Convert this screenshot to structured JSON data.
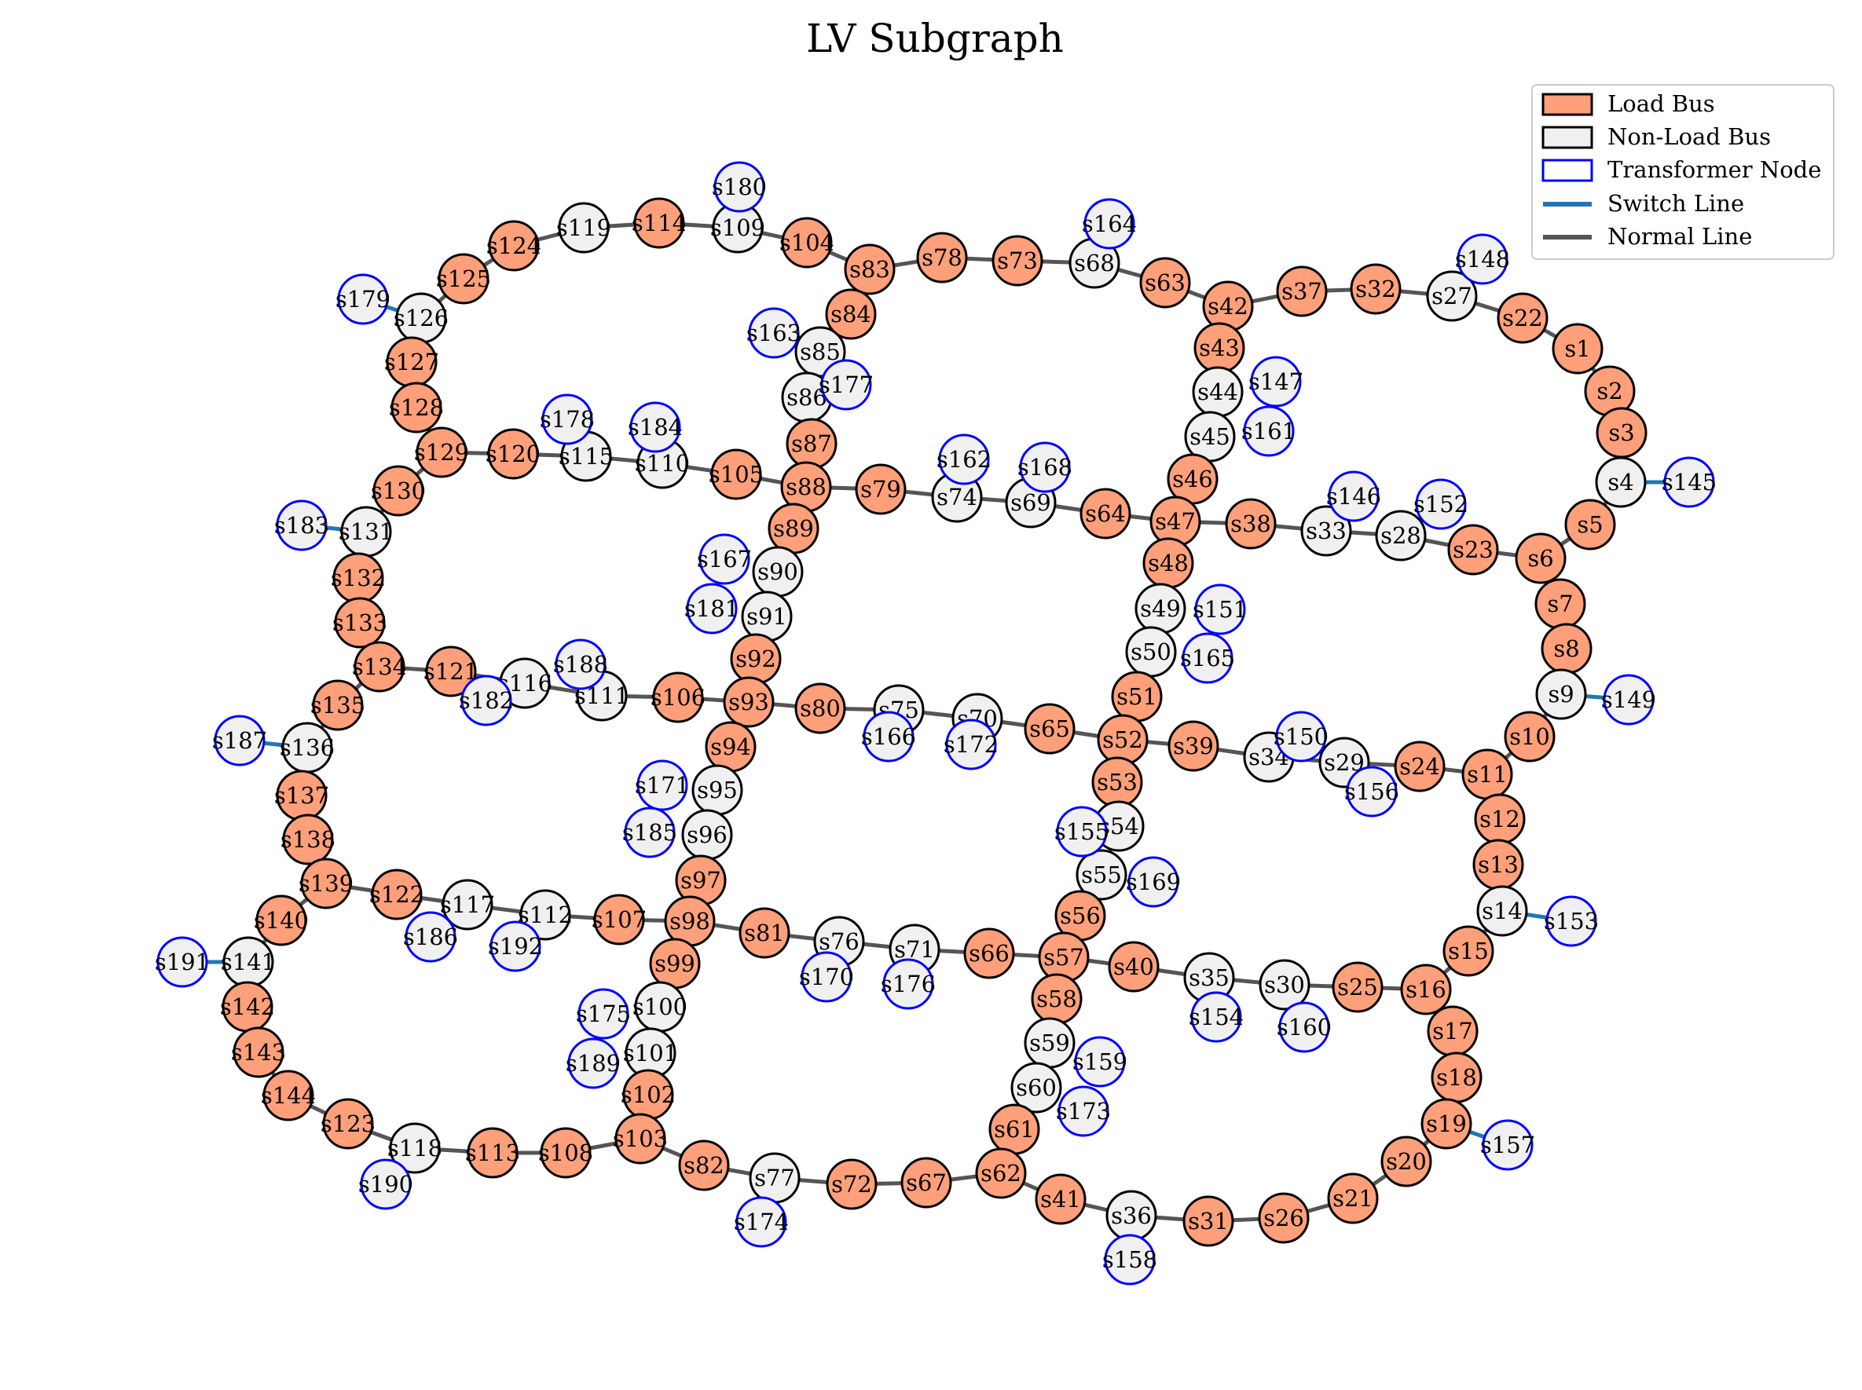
{
  "title": "LV Subgraph",
  "colors": {
    "load_fill": "#FFA07A",
    "nonload_fill": "#F0F0F0",
    "node_edge": "#000000",
    "transformer_edge": "#0000FF",
    "switch_line": "#1F77B4",
    "normal_line": "#555555"
  },
  "legend": {
    "load_bus": "Load Bus",
    "non_load_bus": "Non-Load Bus",
    "transformer_node": "Transformer Node",
    "switch_line": "Switch Line",
    "normal_line": "Normal Line"
  },
  "nodes": [
    [
      "s1",
      "L"
    ],
    [
      "s2",
      "L"
    ],
    [
      "s3",
      "L"
    ],
    [
      "s4",
      "N"
    ],
    [
      "s5",
      "L"
    ],
    [
      "s6",
      "L"
    ],
    [
      "s7",
      "L"
    ],
    [
      "s8",
      "L"
    ],
    [
      "s9",
      "N"
    ],
    [
      "s10",
      "L"
    ],
    [
      "s11",
      "L"
    ],
    [
      "s12",
      "L"
    ],
    [
      "s13",
      "L"
    ],
    [
      "s14",
      "N"
    ],
    [
      "s15",
      "L"
    ],
    [
      "s16",
      "L"
    ],
    [
      "s17",
      "L"
    ],
    [
      "s18",
      "L"
    ],
    [
      "s19",
      "L"
    ],
    [
      "s20",
      "L"
    ],
    [
      "s21",
      "L"
    ],
    [
      "s22",
      "L"
    ],
    [
      "s23",
      "L"
    ],
    [
      "s24",
      "L"
    ],
    [
      "s25",
      "L"
    ],
    [
      "s26",
      "L"
    ],
    [
      "s27",
      "N"
    ],
    [
      "s28",
      "N"
    ],
    [
      "s29",
      "N"
    ],
    [
      "s30",
      "N"
    ],
    [
      "s31",
      "L"
    ],
    [
      "s32",
      "L"
    ],
    [
      "s33",
      "N"
    ],
    [
      "s34",
      "N"
    ],
    [
      "s35",
      "N"
    ],
    [
      "s36",
      "N"
    ],
    [
      "s37",
      "L"
    ],
    [
      "s38",
      "L"
    ],
    [
      "s39",
      "L"
    ],
    [
      "s40",
      "L"
    ],
    [
      "s41",
      "L"
    ],
    [
      "s42",
      "L"
    ],
    [
      "s43",
      "L"
    ],
    [
      "s44",
      "N"
    ],
    [
      "s45",
      "N"
    ],
    [
      "s46",
      "L"
    ],
    [
      "s47",
      "L"
    ],
    [
      "s48",
      "L"
    ],
    [
      "s49",
      "N"
    ],
    [
      "s50",
      "N"
    ],
    [
      "s51",
      "L"
    ],
    [
      "s52",
      "L"
    ],
    [
      "s53",
      "L"
    ],
    [
      "s54",
      "N"
    ],
    [
      "s55",
      "N"
    ],
    [
      "s56",
      "L"
    ],
    [
      "s57",
      "L"
    ],
    [
      "s58",
      "L"
    ],
    [
      "s59",
      "N"
    ],
    [
      "s60",
      "N"
    ],
    [
      "s61",
      "L"
    ],
    [
      "s62",
      "L"
    ],
    [
      "s63",
      "L"
    ],
    [
      "s64",
      "L"
    ],
    [
      "s65",
      "L"
    ],
    [
      "s66",
      "L"
    ],
    [
      "s67",
      "L"
    ],
    [
      "s68",
      "N"
    ],
    [
      "s69",
      "N"
    ],
    [
      "s70",
      "N"
    ],
    [
      "s71",
      "N"
    ],
    [
      "s72",
      "L"
    ],
    [
      "s73",
      "L"
    ],
    [
      "s74",
      "N"
    ],
    [
      "s75",
      "N"
    ],
    [
      "s76",
      "N"
    ],
    [
      "s77",
      "N"
    ],
    [
      "s78",
      "L"
    ],
    [
      "s79",
      "L"
    ],
    [
      "s80",
      "L"
    ],
    [
      "s81",
      "L"
    ],
    [
      "s82",
      "L"
    ],
    [
      "s83",
      "L"
    ],
    [
      "s84",
      "L"
    ],
    [
      "s85",
      "N"
    ],
    [
      "s86",
      "N"
    ],
    [
      "s87",
      "L"
    ],
    [
      "s88",
      "L"
    ],
    [
      "s89",
      "L"
    ],
    [
      "s90",
      "N"
    ],
    [
      "s91",
      "N"
    ],
    [
      "s92",
      "L"
    ],
    [
      "s93",
      "L"
    ],
    [
      "s94",
      "L"
    ],
    [
      "s95",
      "N"
    ],
    [
      "s96",
      "N"
    ],
    [
      "s97",
      "L"
    ],
    [
      "s98",
      "L"
    ],
    [
      "s99",
      "L"
    ],
    [
      "s100",
      "N"
    ],
    [
      "s101",
      "N"
    ],
    [
      "s102",
      "L"
    ],
    [
      "s103",
      "L"
    ],
    [
      "s104",
      "L"
    ],
    [
      "s105",
      "L"
    ],
    [
      "s106",
      "L"
    ],
    [
      "s107",
      "L"
    ],
    [
      "s108",
      "L"
    ],
    [
      "s109",
      "N"
    ],
    [
      "s110",
      "N"
    ],
    [
      "s111",
      "N"
    ],
    [
      "s112",
      "N"
    ],
    [
      "s113",
      "L"
    ],
    [
      "s114",
      "L"
    ],
    [
      "s115",
      "N"
    ],
    [
      "s116",
      "N"
    ],
    [
      "s117",
      "N"
    ],
    [
      "s118",
      "N"
    ],
    [
      "s119",
      "N"
    ],
    [
      "s120",
      "L"
    ],
    [
      "s121",
      "L"
    ],
    [
      "s122",
      "L"
    ],
    [
      "s123",
      "L"
    ],
    [
      "s124",
      "L"
    ],
    [
      "s125",
      "L"
    ],
    [
      "s126",
      "N"
    ],
    [
      "s127",
      "L"
    ],
    [
      "s128",
      "L"
    ],
    [
      "s129",
      "L"
    ],
    [
      "s130",
      "L"
    ],
    [
      "s131",
      "N"
    ],
    [
      "s132",
      "L"
    ],
    [
      "s133",
      "L"
    ],
    [
      "s134",
      "L"
    ],
    [
      "s135",
      "L"
    ],
    [
      "s136",
      "N"
    ],
    [
      "s137",
      "L"
    ],
    [
      "s138",
      "L"
    ],
    [
      "s139",
      "L"
    ],
    [
      "s140",
      "L"
    ],
    [
      "s141",
      "N"
    ],
    [
      "s142",
      "L"
    ],
    [
      "s143",
      "L"
    ],
    [
      "s144",
      "L"
    ],
    [
      "s145",
      "T"
    ],
    [
      "s146",
      "T"
    ],
    [
      "s147",
      "T"
    ],
    [
      "s148",
      "T"
    ],
    [
      "s149",
      "T"
    ],
    [
      "s150",
      "T"
    ],
    [
      "s151",
      "T"
    ],
    [
      "s152",
      "T"
    ],
    [
      "s153",
      "T"
    ],
    [
      "s154",
      "T"
    ],
    [
      "s155",
      "T"
    ],
    [
      "s156",
      "T"
    ],
    [
      "s157",
      "T"
    ],
    [
      "s158",
      "T"
    ],
    [
      "s159",
      "T"
    ],
    [
      "s160",
      "T"
    ],
    [
      "s161",
      "T"
    ],
    [
      "s162",
      "T"
    ],
    [
      "s163",
      "T"
    ],
    [
      "s164",
      "T"
    ],
    [
      "s165",
      "T"
    ],
    [
      "s166",
      "T"
    ],
    [
      "s167",
      "T"
    ],
    [
      "s168",
      "T"
    ],
    [
      "s169",
      "T"
    ],
    [
      "s170",
      "T"
    ],
    [
      "s171",
      "T"
    ],
    [
      "s172",
      "T"
    ],
    [
      "s173",
      "T"
    ],
    [
      "s174",
      "T"
    ],
    [
      "s175",
      "T"
    ],
    [
      "s176",
      "T"
    ],
    [
      "s177",
      "T"
    ],
    [
      "s178",
      "T"
    ],
    [
      "s179",
      "T"
    ],
    [
      "s180",
      "T"
    ],
    [
      "s181",
      "T"
    ],
    [
      "s182",
      "T"
    ],
    [
      "s183",
      "T"
    ],
    [
      "s184",
      "T"
    ],
    [
      "s185",
      "T"
    ],
    [
      "s186",
      "T"
    ],
    [
      "s187",
      "T"
    ],
    [
      "s188",
      "T"
    ],
    [
      "s189",
      "T"
    ],
    [
      "s190",
      "T"
    ],
    [
      "s191",
      "T"
    ],
    [
      "s192",
      "T"
    ]
  ],
  "edges": [
    [
      "s22",
      "s1"
    ],
    [
      "s1",
      "s2"
    ],
    [
      "s2",
      "s3"
    ],
    [
      "s3",
      "s4"
    ],
    [
      "s4",
      "s5"
    ],
    [
      "s5",
      "s6"
    ],
    [
      "s6",
      "s7"
    ],
    [
      "s7",
      "s8"
    ],
    [
      "s8",
      "s9"
    ],
    [
      "s9",
      "s10"
    ],
    [
      "s10",
      "s11"
    ],
    [
      "s11",
      "s12"
    ],
    [
      "s12",
      "s13"
    ],
    [
      "s13",
      "s14"
    ],
    [
      "s14",
      "s15"
    ],
    [
      "s15",
      "s16"
    ],
    [
      "s16",
      "s17"
    ],
    [
      "s17",
      "s18"
    ],
    [
      "s18",
      "s19"
    ],
    [
      "s19",
      "s20"
    ],
    [
      "s20",
      "s21"
    ],
    [
      "s21",
      "s26"
    ],
    [
      "s26",
      "s31"
    ],
    [
      "s31",
      "s36"
    ],
    [
      "s36",
      "s41"
    ],
    [
      "s41",
      "s62"
    ],
    [
      "s42",
      "s37"
    ],
    [
      "s37",
      "s32"
    ],
    [
      "s32",
      "s27"
    ],
    [
      "s27",
      "s22"
    ],
    [
      "s47",
      "s38"
    ],
    [
      "s38",
      "s33"
    ],
    [
      "s33",
      "s28"
    ],
    [
      "s28",
      "s23"
    ],
    [
      "s23",
      "s6"
    ],
    [
      "s52",
      "s39"
    ],
    [
      "s39",
      "s34"
    ],
    [
      "s34",
      "s29"
    ],
    [
      "s29",
      "s24"
    ],
    [
      "s24",
      "s11"
    ],
    [
      "s57",
      "s40"
    ],
    [
      "s40",
      "s35"
    ],
    [
      "s35",
      "s30"
    ],
    [
      "s30",
      "s25"
    ],
    [
      "s25",
      "s16"
    ],
    [
      "s83",
      "s78"
    ],
    [
      "s78",
      "s73"
    ],
    [
      "s73",
      "s68"
    ],
    [
      "s68",
      "s63"
    ],
    [
      "s63",
      "s42"
    ],
    [
      "s42",
      "s43"
    ],
    [
      "s43",
      "s44"
    ],
    [
      "s44",
      "s45"
    ],
    [
      "s45",
      "s46"
    ],
    [
      "s46",
      "s47"
    ],
    [
      "s47",
      "s48"
    ],
    [
      "s48",
      "s49"
    ],
    [
      "s49",
      "s50"
    ],
    [
      "s50",
      "s51"
    ],
    [
      "s51",
      "s52"
    ],
    [
      "s52",
      "s53"
    ],
    [
      "s53",
      "s54"
    ],
    [
      "s54",
      "s55"
    ],
    [
      "s55",
      "s56"
    ],
    [
      "s56",
      "s57"
    ],
    [
      "s57",
      "s58"
    ],
    [
      "s58",
      "s59"
    ],
    [
      "s59",
      "s60"
    ],
    [
      "s60",
      "s61"
    ],
    [
      "s61",
      "s62"
    ],
    [
      "s88",
      "s79"
    ],
    [
      "s79",
      "s74"
    ],
    [
      "s74",
      "s69"
    ],
    [
      "s69",
      "s64"
    ],
    [
      "s64",
      "s47"
    ],
    [
      "s93",
      "s80"
    ],
    [
      "s80",
      "s75"
    ],
    [
      "s75",
      "s70"
    ],
    [
      "s70",
      "s65"
    ],
    [
      "s65",
      "s52"
    ],
    [
      "s98",
      "s81"
    ],
    [
      "s81",
      "s76"
    ],
    [
      "s76",
      "s71"
    ],
    [
      "s71",
      "s66"
    ],
    [
      "s66",
      "s57"
    ],
    [
      "s103",
      "s82"
    ],
    [
      "s82",
      "s77"
    ],
    [
      "s77",
      "s72"
    ],
    [
      "s72",
      "s67"
    ],
    [
      "s67",
      "s62"
    ],
    [
      "s114",
      "s109"
    ],
    [
      "s109",
      "s104"
    ],
    [
      "s104",
      "s83"
    ],
    [
      "s83",
      "s84"
    ],
    [
      "s84",
      "s85"
    ],
    [
      "s85",
      "s86"
    ],
    [
      "s86",
      "s87"
    ],
    [
      "s87",
      "s88"
    ],
    [
      "s88",
      "s89"
    ],
    [
      "s89",
      "s90"
    ],
    [
      "s90",
      "s91"
    ],
    [
      "s91",
      "s92"
    ],
    [
      "s92",
      "s93"
    ],
    [
      "s93",
      "s94"
    ],
    [
      "s94",
      "s95"
    ],
    [
      "s95",
      "s96"
    ],
    [
      "s96",
      "s97"
    ],
    [
      "s97",
      "s98"
    ],
    [
      "s98",
      "s99"
    ],
    [
      "s99",
      "s100"
    ],
    [
      "s100",
      "s101"
    ],
    [
      "s101",
      "s102"
    ],
    [
      "s102",
      "s103"
    ],
    [
      "s129",
      "s120"
    ],
    [
      "s120",
      "s115"
    ],
    [
      "s115",
      "s110"
    ],
    [
      "s110",
      "s105"
    ],
    [
      "s105",
      "s88"
    ],
    [
      "s134",
      "s121"
    ],
    [
      "s121",
      "s116"
    ],
    [
      "s116",
      "s111"
    ],
    [
      "s111",
      "s106"
    ],
    [
      "s106",
      "s93"
    ],
    [
      "s139",
      "s122"
    ],
    [
      "s122",
      "s117"
    ],
    [
      "s117",
      "s112"
    ],
    [
      "s112",
      "s107"
    ],
    [
      "s107",
      "s98"
    ],
    [
      "s144",
      "s123"
    ],
    [
      "s123",
      "s118"
    ],
    [
      "s118",
      "s113"
    ],
    [
      "s113",
      "s108"
    ],
    [
      "s108",
      "s103"
    ],
    [
      "s125",
      "s124"
    ],
    [
      "s124",
      "s119"
    ],
    [
      "s119",
      "s114"
    ],
    [
      "s125",
      "s126"
    ],
    [
      "s126",
      "s127"
    ],
    [
      "s127",
      "s128"
    ],
    [
      "s128",
      "s129"
    ],
    [
      "s129",
      "s130"
    ],
    [
      "s130",
      "s131"
    ],
    [
      "s131",
      "s132"
    ],
    [
      "s132",
      "s133"
    ],
    [
      "s133",
      "s134"
    ],
    [
      "s134",
      "s135"
    ],
    [
      "s135",
      "s136"
    ],
    [
      "s136",
      "s137"
    ],
    [
      "s137",
      "s138"
    ],
    [
      "s138",
      "s139"
    ],
    [
      "s139",
      "s140"
    ],
    [
      "s140",
      "s141"
    ],
    [
      "s141",
      "s142"
    ],
    [
      "s142",
      "s143"
    ],
    [
      "s143",
      "s144"
    ]
  ],
  "switch_edges": [
    [
      "s4",
      "s145"
    ],
    [
      "s9",
      "s149"
    ],
    [
      "s14",
      "s153"
    ],
    [
      "s19",
      "s157"
    ],
    [
      "s126",
      "s179"
    ],
    [
      "s131",
      "s183"
    ],
    [
      "s136",
      "s187"
    ],
    [
      "s141",
      "s191"
    ]
  ]
}
